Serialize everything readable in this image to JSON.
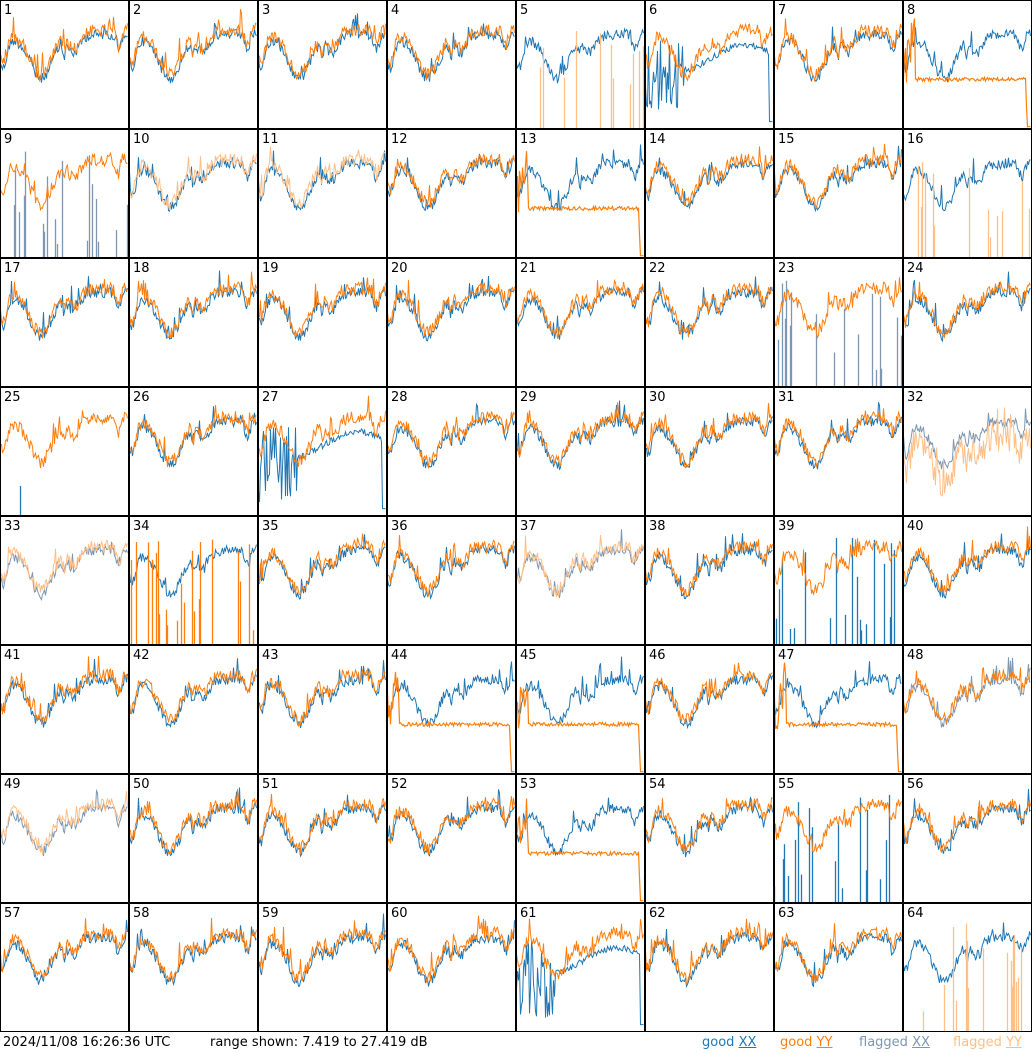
{
  "footer": {
    "timestamp": "2024/11/08 16:26:36 UTC",
    "range_text": "range shown: 7.419 to 27.419 dB"
  },
  "legend": [
    {
      "label": "good",
      "pol": "XX",
      "color": "#1f77b4"
    },
    {
      "label": "good",
      "pol": "YY",
      "color": "#ff7f0e"
    },
    {
      "label": "flagged",
      "pol": "XX",
      "color": "#7d97b2"
    },
    {
      "label": "flagged",
      "pol": "YY",
      "color": "#ffbf87"
    }
  ],
  "colors": {
    "good_xx": "#1f77b4",
    "good_yy": "#ff7f0e",
    "flagged_xx": "#7d97b2",
    "flagged_yy": "#ffbf87"
  },
  "chart_data": {
    "type": "line",
    "layout": "8x8 small multiples",
    "ylim_db": [
      7.419,
      27.419
    ],
    "panels": [
      {
        "id": "1",
        "xx": "good",
        "yy": "good",
        "shape": "normal"
      },
      {
        "id": "2",
        "xx": "good",
        "yy": "good",
        "shape": "normal"
      },
      {
        "id": "3",
        "xx": "good",
        "yy": "good",
        "shape": "normal"
      },
      {
        "id": "4",
        "xx": "good",
        "yy": "good",
        "shape": "normal"
      },
      {
        "id": "5",
        "xx": "good",
        "yy": "flagged",
        "shape": "yy_spikes"
      },
      {
        "id": "6",
        "xx": "good",
        "yy": "good",
        "shape": "xx_noisy_low"
      },
      {
        "id": "7",
        "xx": "good",
        "yy": "good",
        "shape": "normal"
      },
      {
        "id": "8",
        "xx": "good",
        "yy": "good",
        "shape": "yy_flat"
      },
      {
        "id": "9",
        "xx": "flagged",
        "yy": "good",
        "shape": "xx_spikes"
      },
      {
        "id": "10",
        "xx": "good",
        "yy": "flagged",
        "shape": "normal"
      },
      {
        "id": "11",
        "xx": "good",
        "yy": "flagged",
        "shape": "normal"
      },
      {
        "id": "12",
        "xx": "good",
        "yy": "good",
        "shape": "normal"
      },
      {
        "id": "13",
        "xx": "good",
        "yy": "good",
        "shape": "yy_flat"
      },
      {
        "id": "14",
        "xx": "good",
        "yy": "good",
        "shape": "normal"
      },
      {
        "id": "15",
        "xx": "good",
        "yy": "good",
        "shape": "normal"
      },
      {
        "id": "16",
        "xx": "good",
        "yy": "flagged",
        "shape": "yy_spikes"
      },
      {
        "id": "17",
        "xx": "good",
        "yy": "good",
        "shape": "normal"
      },
      {
        "id": "18",
        "xx": "good",
        "yy": "good",
        "shape": "normal"
      },
      {
        "id": "19",
        "xx": "good",
        "yy": "good",
        "shape": "normal"
      },
      {
        "id": "20",
        "xx": "good",
        "yy": "good",
        "shape": "normal"
      },
      {
        "id": "21",
        "xx": "good",
        "yy": "good",
        "shape": "normal"
      },
      {
        "id": "22",
        "xx": "good",
        "yy": "good",
        "shape": "normal"
      },
      {
        "id": "23",
        "xx": "flagged",
        "yy": "good",
        "shape": "xx_spikes"
      },
      {
        "id": "24",
        "xx": "good",
        "yy": "good",
        "shape": "normal"
      },
      {
        "id": "25",
        "xx": "good",
        "yy": "good",
        "shape": "xx_hidden"
      },
      {
        "id": "26",
        "xx": "good",
        "yy": "good",
        "shape": "normal"
      },
      {
        "id": "27",
        "xx": "good",
        "yy": "good",
        "shape": "xx_noisy_low"
      },
      {
        "id": "28",
        "xx": "good",
        "yy": "good",
        "shape": "normal"
      },
      {
        "id": "29",
        "xx": "good",
        "yy": "good",
        "shape": "normal"
      },
      {
        "id": "30",
        "xx": "good",
        "yy": "good",
        "shape": "normal"
      },
      {
        "id": "31",
        "xx": "good",
        "yy": "good",
        "shape": "normal"
      },
      {
        "id": "32",
        "xx": "flagged",
        "yy": "flagged",
        "shape": "both_flagged"
      },
      {
        "id": "33",
        "xx": "flagged",
        "yy": "flagged",
        "shape": "normal"
      },
      {
        "id": "34",
        "xx": "good",
        "yy": "good",
        "shape": "yy_spikes"
      },
      {
        "id": "35",
        "xx": "good",
        "yy": "good",
        "shape": "normal"
      },
      {
        "id": "36",
        "xx": "good",
        "yy": "good",
        "shape": "normal"
      },
      {
        "id": "37",
        "xx": "flagged",
        "yy": "flagged",
        "shape": "normal"
      },
      {
        "id": "38",
        "xx": "good",
        "yy": "good",
        "shape": "normal"
      },
      {
        "id": "39",
        "xx": "good",
        "yy": "good",
        "shape": "xx_spikes"
      },
      {
        "id": "40",
        "xx": "good",
        "yy": "good",
        "shape": "normal"
      },
      {
        "id": "41",
        "xx": "good",
        "yy": "good",
        "shape": "normal"
      },
      {
        "id": "42",
        "xx": "good",
        "yy": "good",
        "shape": "normal"
      },
      {
        "id": "43",
        "xx": "good",
        "yy": "good",
        "shape": "normal"
      },
      {
        "id": "44",
        "xx": "good",
        "yy": "good",
        "shape": "yy_flat"
      },
      {
        "id": "45",
        "xx": "good",
        "yy": "good",
        "shape": "yy_flat"
      },
      {
        "id": "46",
        "xx": "good",
        "yy": "good",
        "shape": "normal"
      },
      {
        "id": "47",
        "xx": "good",
        "yy": "good",
        "shape": "yy_flat"
      },
      {
        "id": "48",
        "xx": "flagged",
        "yy": "good",
        "shape": "normal"
      },
      {
        "id": "49",
        "xx": "flagged",
        "yy": "flagged",
        "shape": "normal"
      },
      {
        "id": "50",
        "xx": "good",
        "yy": "good",
        "shape": "normal"
      },
      {
        "id": "51",
        "xx": "good",
        "yy": "good",
        "shape": "normal"
      },
      {
        "id": "52",
        "xx": "good",
        "yy": "good",
        "shape": "normal"
      },
      {
        "id": "53",
        "xx": "good",
        "yy": "good",
        "shape": "yy_flat"
      },
      {
        "id": "54",
        "xx": "good",
        "yy": "good",
        "shape": "normal"
      },
      {
        "id": "55",
        "xx": "good",
        "yy": "good",
        "shape": "xx_spikes"
      },
      {
        "id": "56",
        "xx": "good",
        "yy": "good",
        "shape": "normal"
      },
      {
        "id": "57",
        "xx": "good",
        "yy": "good",
        "shape": "normal"
      },
      {
        "id": "58",
        "xx": "good",
        "yy": "good",
        "shape": "normal"
      },
      {
        "id": "59",
        "xx": "good",
        "yy": "good",
        "shape": "normal"
      },
      {
        "id": "60",
        "xx": "good",
        "yy": "good",
        "shape": "normal"
      },
      {
        "id": "61",
        "xx": "good",
        "yy": "good",
        "shape": "xx_noisy_low"
      },
      {
        "id": "62",
        "xx": "good",
        "yy": "good",
        "shape": "normal"
      },
      {
        "id": "63",
        "xx": "good",
        "yy": "good",
        "shape": "normal"
      },
      {
        "id": "64",
        "xx": "good",
        "yy": "flagged",
        "shape": "yy_spikes"
      }
    ]
  }
}
